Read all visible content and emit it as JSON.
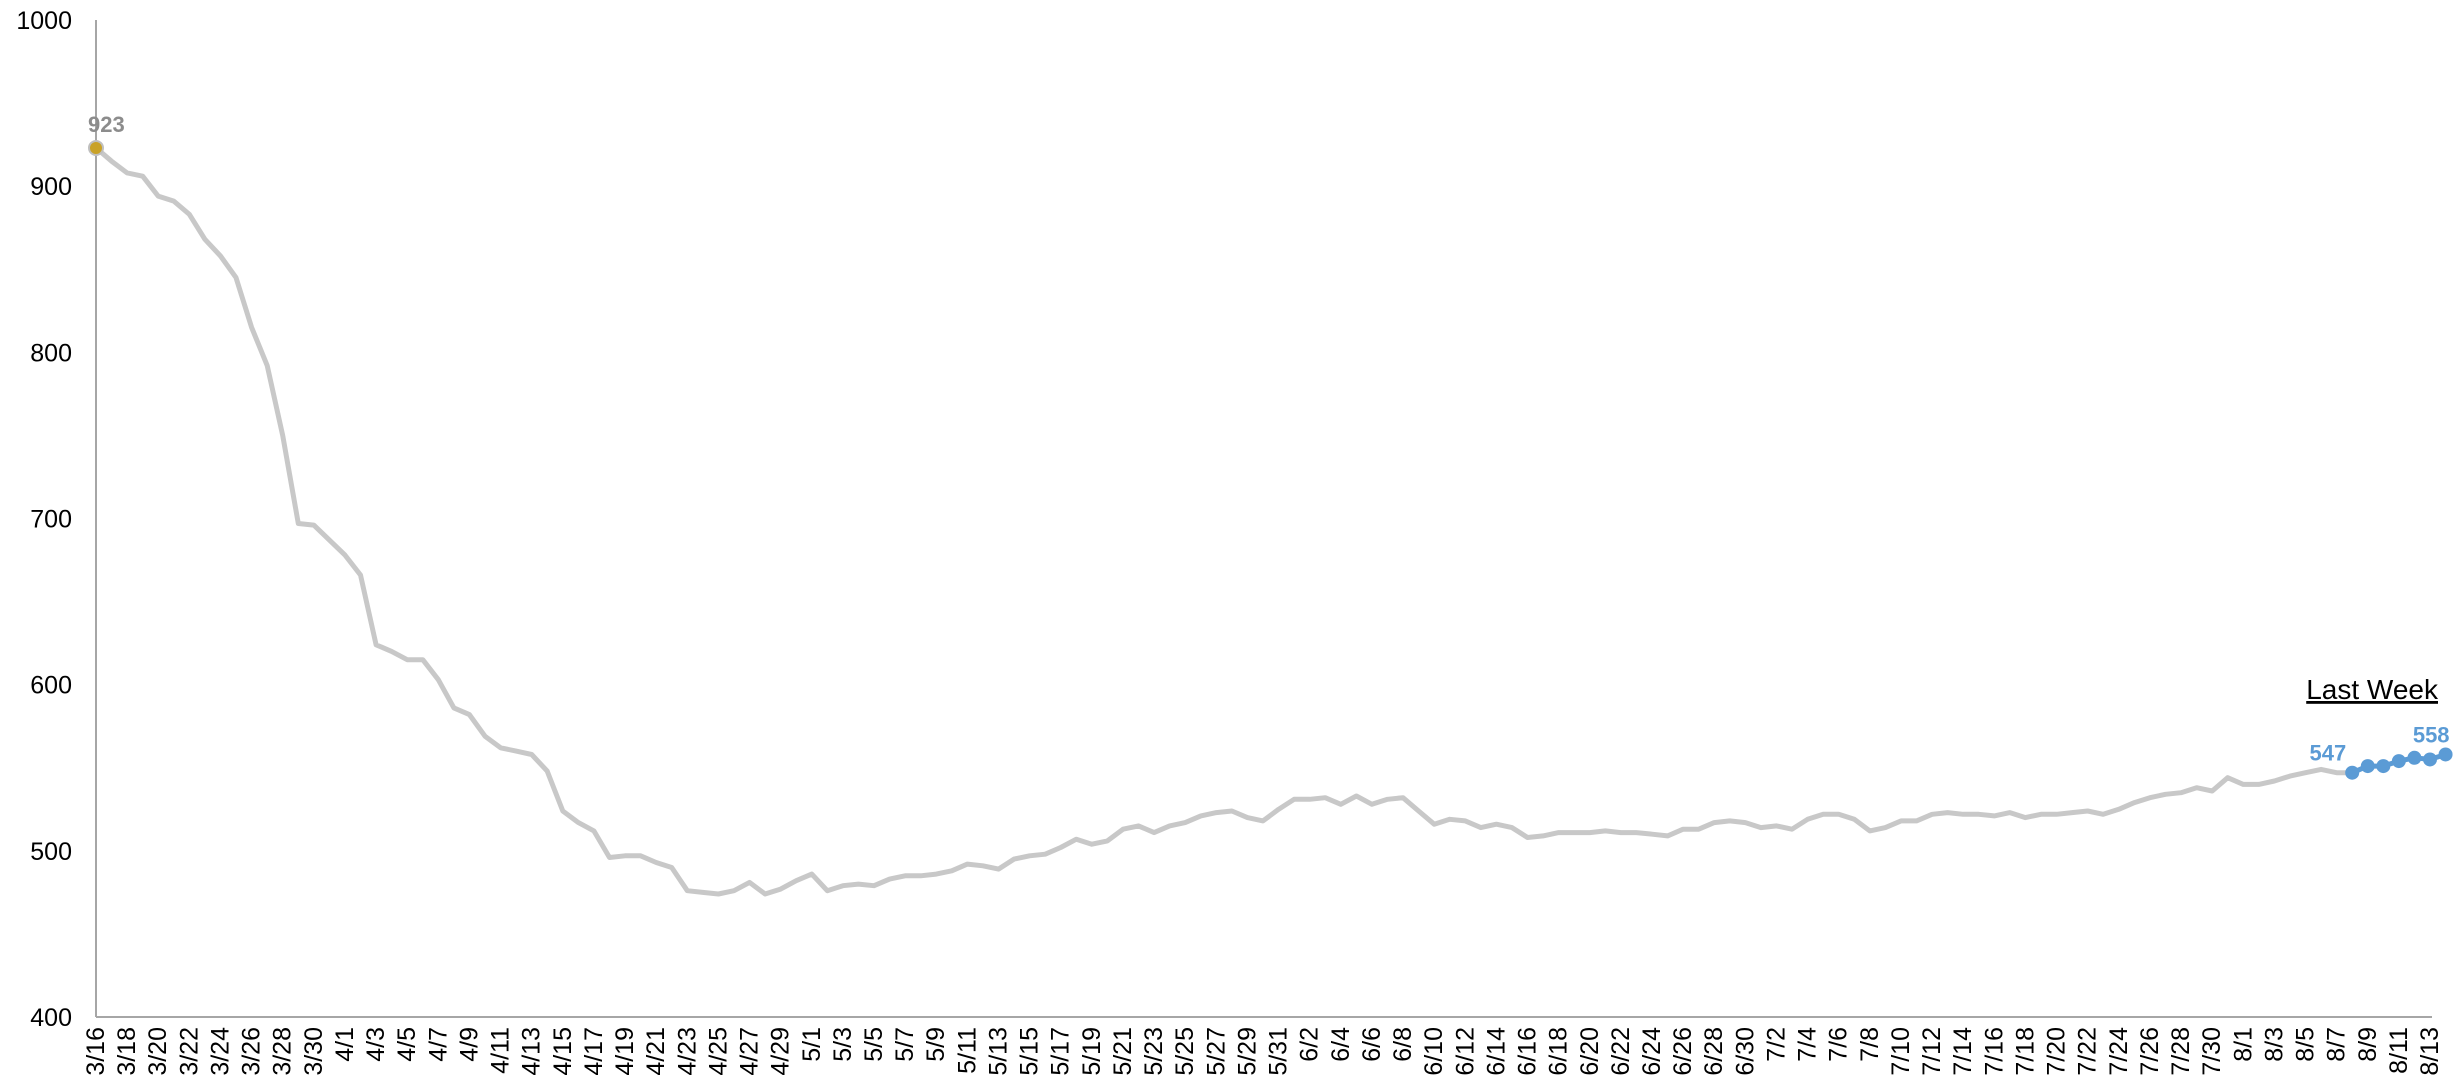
{
  "chart_data": {
    "type": "line",
    "title": "",
    "xlabel": "",
    "ylabel": "",
    "ylim": [
      400,
      1000
    ],
    "yticks": [
      "400",
      "500",
      "600",
      "700",
      "800",
      "900",
      "1000"
    ],
    "grid": false,
    "line_color": "#c8c8c8",
    "highlight_color": "#5b9bd5",
    "start_marker_color": "#c9a227",
    "annotation_color_start": "#8c8c8c",
    "x": [
      "3/16",
      "3/17",
      "3/18",
      "3/19",
      "3/20",
      "3/21",
      "3/22",
      "3/23",
      "3/24",
      "3/25",
      "3/26",
      "3/27",
      "3/28",
      "3/29",
      "3/30",
      "3/31",
      "4/1",
      "4/2",
      "4/3",
      "4/4",
      "4/5",
      "4/6",
      "4/7",
      "4/8",
      "4/9",
      "4/10",
      "4/11",
      "4/12",
      "4/13",
      "4/14",
      "4/15",
      "4/16",
      "4/17",
      "4/18",
      "4/19",
      "4/20",
      "4/21",
      "4/22",
      "4/23",
      "4/24",
      "4/25",
      "4/26",
      "4/27",
      "4/28",
      "4/29",
      "4/30",
      "5/1",
      "5/2",
      "5/3",
      "5/4",
      "5/5",
      "5/6",
      "5/7",
      "5/8",
      "5/9",
      "5/10",
      "5/11",
      "5/12",
      "5/13",
      "5/14",
      "5/15",
      "5/16",
      "5/17",
      "5/18",
      "5/19",
      "5/20",
      "5/21",
      "5/22",
      "5/23",
      "5/24",
      "5/25",
      "5/26",
      "5/27",
      "5/28",
      "5/29",
      "5/30",
      "5/31",
      "6/1",
      "6/2",
      "6/3",
      "6/4",
      "6/5",
      "6/6",
      "6/7",
      "6/8",
      "6/9",
      "6/10",
      "6/11",
      "6/12",
      "6/13",
      "6/14",
      "6/15",
      "6/16",
      "6/17",
      "6/18",
      "6/19",
      "6/20",
      "6/21",
      "6/22",
      "6/23",
      "6/24",
      "6/25",
      "6/26",
      "6/27",
      "6/28",
      "6/29",
      "6/30",
      "7/1",
      "7/2",
      "7/3",
      "7/4",
      "7/5",
      "7/6",
      "7/7",
      "7/8",
      "7/9",
      "7/10",
      "7/11",
      "7/12",
      "7/13",
      "7/14",
      "7/15",
      "7/16",
      "7/17",
      "7/18",
      "7/19",
      "7/20",
      "7/21",
      "7/22",
      "7/23",
      "7/24",
      "7/25",
      "7/26",
      "7/27",
      "7/28",
      "7/29",
      "7/30",
      "7/31",
      "8/1",
      "8/2",
      "8/3",
      "8/4",
      "8/5",
      "8/6",
      "8/7",
      "8/8",
      "8/9",
      "8/10",
      "8/11",
      "8/12",
      "8/13",
      "8/14"
    ],
    "x_tick_labels": [
      "3/16",
      "3/18",
      "3/20",
      "3/22",
      "3/24",
      "3/26",
      "3/28",
      "3/30",
      "4/1",
      "4/3",
      "4/5",
      "4/7",
      "4/9",
      "4/11",
      "4/13",
      "4/15",
      "4/17",
      "4/19",
      "4/21",
      "4/23",
      "4/25",
      "4/27",
      "4/29",
      "5/1",
      "5/3",
      "5/5",
      "5/7",
      "5/9",
      "5/11",
      "5/13",
      "5/15",
      "5/17",
      "5/19",
      "5/21",
      "5/23",
      "5/25",
      "5/27",
      "5/29",
      "5/31",
      "6/2",
      "6/4",
      "6/6",
      "6/8",
      "6/10",
      "6/12",
      "6/14",
      "6/16",
      "6/18",
      "6/20",
      "6/22",
      "6/24",
      "6/26",
      "6/28",
      "6/30",
      "7/2",
      "7/4",
      "7/6",
      "7/8",
      "7/10",
      "7/12",
      "7/14",
      "7/16",
      "7/18",
      "7/20",
      "7/22",
      "7/24",
      "7/26",
      "7/28",
      "7/30",
      "8/1",
      "8/3",
      "8/5",
      "8/7",
      "8/9",
      "8/11",
      "8/13"
    ],
    "values": [
      923,
      915,
      908,
      906,
      894,
      891,
      883,
      868,
      858,
      845,
      815,
      792,
      750,
      697,
      696,
      687,
      678,
      666,
      624,
      620,
      615,
      615,
      603,
      586,
      582,
      569,
      562,
      560,
      558,
      548,
      524,
      517,
      512,
      496,
      497,
      497,
      493,
      490,
      476,
      475,
      474,
      476,
      481,
      474,
      477,
      482,
      486,
      476,
      479,
      480,
      479,
      483,
      485,
      485,
      486,
      488,
      492,
      491,
      489,
      495,
      497,
      498,
      502,
      507,
      504,
      506,
      513,
      515,
      511,
      515,
      517,
      521,
      523,
      524,
      520,
      518,
      525,
      531,
      531,
      532,
      528,
      533,
      528,
      531,
      532,
      524,
      516,
      519,
      518,
      514,
      516,
      514,
      508,
      509,
      511,
      511,
      511,
      512,
      511,
      511,
      510,
      509,
      513,
      513,
      517,
      518,
      517,
      514,
      515,
      513,
      519,
      522,
      522,
      519,
      512,
      514,
      518,
      518,
      522,
      523,
      522,
      522,
      521,
      523,
      520,
      522,
      522,
      523,
      524,
      522,
      525,
      529,
      532,
      534,
      535,
      538,
      536,
      544,
      540,
      540,
      542,
      545,
      547,
      549,
      547,
      547,
      551,
      551,
      554,
      556,
      555,
      558
    ],
    "highlight_series_name": "Last Week",
    "highlight_start_index": 145,
    "annotations": [
      {
        "label": "923",
        "index": 0
      },
      {
        "label": "547",
        "index": 145
      },
      {
        "label": "558",
        "index": 151
      }
    ]
  }
}
